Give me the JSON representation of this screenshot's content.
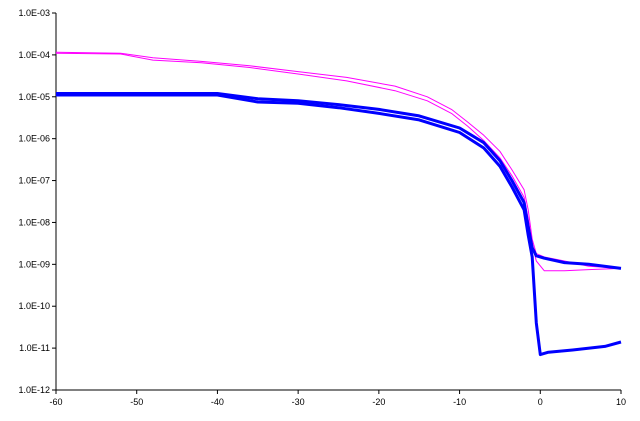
{
  "chart_data": {
    "type": "line",
    "title": "",
    "xlabel": "",
    "ylabel": "",
    "grid": false,
    "legend": "none",
    "x_scale": "linear",
    "y_scale": "log",
    "xlim": [
      -60,
      10
    ],
    "ylim": [
      1e-12,
      0.001
    ],
    "x_ticks": [
      {
        "value": -60,
        "label": "-60"
      },
      {
        "value": -50,
        "label": "-50"
      },
      {
        "value": -40,
        "label": "-40"
      },
      {
        "value": -30,
        "label": "-30"
      },
      {
        "value": -20,
        "label": "-20"
      },
      {
        "value": -10,
        "label": "-10"
      },
      {
        "value": 0,
        "label": "0"
      },
      {
        "value": 10,
        "label": "10"
      }
    ],
    "y_ticks": [
      {
        "value": 0.001,
        "label": "1.0E-03"
      },
      {
        "value": 0.0001,
        "label": "1.0E-04"
      },
      {
        "value": 1e-05,
        "label": "1.0E-05"
      },
      {
        "value": 1e-06,
        "label": "1.0E-06"
      },
      {
        "value": 1e-07,
        "label": "1.0E-07"
      },
      {
        "value": 1e-08,
        "label": "1.0E-08"
      },
      {
        "value": 1e-09,
        "label": "1.0E-09"
      },
      {
        "value": 1e-10,
        "label": "1.0E-10"
      },
      {
        "value": 1e-11,
        "label": "1.0E-11"
      },
      {
        "value": 1e-12,
        "label": "1.0E-12"
      }
    ],
    "series": [
      {
        "color": "#ff00ff",
        "width": 1,
        "x": [
          -60,
          -52,
          -48,
          -42,
          -36,
          -30,
          -24,
          -18,
          -14,
          -11,
          -9,
          -7,
          -5,
          -3.5,
          -2,
          -1.5,
          -1,
          -0.5,
          0.5,
          3,
          6,
          10
        ],
        "y": [
          0.000115,
          0.00011,
          8.5e-05,
          7e-05,
          5.5e-05,
          4e-05,
          2.9e-05,
          1.8e-05,
          1e-05,
          5e-06,
          2.5e-06,
          1.2e-06,
          5e-07,
          1.8e-07,
          6e-08,
          2e-08,
          4e-09,
          1.8e-09,
          1.5e-09,
          1.2e-09,
          9e-10,
          8e-10
        ]
      },
      {
        "color": "#ff00ff",
        "width": 1,
        "x": [
          -60,
          -52,
          -48,
          -42,
          -36,
          -30,
          -24,
          -18,
          -14,
          -11,
          -9,
          -7,
          -5,
          -3.5,
          -2,
          -1.5,
          -1,
          -0.5,
          0.5,
          3,
          6,
          10
        ],
        "y": [
          0.00011,
          0.000105,
          7.5e-05,
          6.5e-05,
          5e-05,
          3.5e-05,
          2.4e-05,
          1.4e-05,
          8e-06,
          4e-06,
          2e-06,
          9e-07,
          3.5e-07,
          1.3e-07,
          4e-08,
          1.2e-08,
          3e-09,
          1.2e-09,
          7e-10,
          7e-10,
          7.5e-10,
          8e-10
        ]
      },
      {
        "color": "#0000ff",
        "width": 3,
        "x": [
          -60,
          -40,
          -35,
          -30,
          -25,
          -20,
          -15,
          -10,
          -7,
          -5,
          -3.5,
          -2,
          -1.5,
          -1,
          -0.5,
          0.5,
          3,
          6,
          10
        ],
        "y": [
          1.2e-05,
          1.2e-05,
          9e-06,
          8e-06,
          6.5e-06,
          5e-06,
          3.5e-06,
          1.8e-06,
          8e-07,
          3e-07,
          1e-07,
          3e-08,
          8e-09,
          2.5e-09,
          1.6e-09,
          1.4e-09,
          1.1e-09,
          1e-09,
          8e-10
        ]
      },
      {
        "color": "#0000ff",
        "width": 3,
        "x": [
          -60,
          -40,
          -35,
          -30,
          -25,
          -20,
          -15,
          -10,
          -7,
          -5,
          -3.5,
          -2,
          -1.5,
          -1,
          -0.5,
          0,
          1,
          4,
          8,
          10
        ],
        "y": [
          1.1e-05,
          1.1e-05,
          7.5e-06,
          7e-06,
          5.5e-06,
          4e-06,
          2.8e-06,
          1.4e-06,
          6e-07,
          2.2e-07,
          7e-08,
          2e-08,
          5e-09,
          1.5e-09,
          4e-11,
          7e-12,
          8e-12,
          9e-12,
          1.1e-11,
          1.4e-11
        ]
      }
    ]
  }
}
